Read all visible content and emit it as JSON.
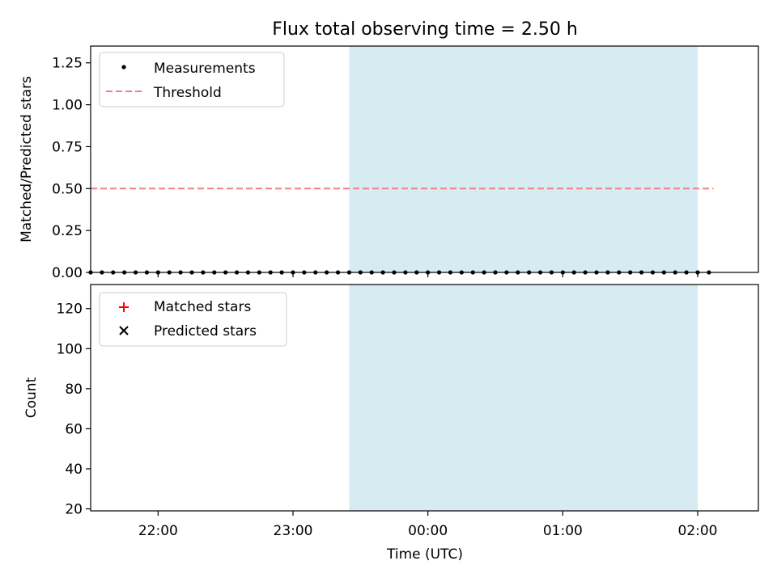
{
  "chart_data": [
    {
      "type": "scatter",
      "title": "Flux total observing time = 2.50 h",
      "ylabel": "Matched/Predicted stars",
      "xlabel": "",
      "xlim": [
        "21:30",
        "02:27"
      ],
      "ylim": [
        0.0,
        1.35
      ],
      "yticks": [
        0.0,
        0.25,
        0.5,
        0.75,
        1.0,
        1.25
      ],
      "ytick_labels": [
        "0.00",
        "0.25",
        "0.50",
        "0.75",
        "1.00",
        "1.25"
      ],
      "shaded_interval": [
        "23:25",
        "02:00"
      ],
      "shade_color": "#add8e6",
      "legend_position": "upper left",
      "series": [
        {
          "name": "Measurements",
          "color": "#000000",
          "marker": "dot",
          "x": [
            "21:30",
            "21:35",
            "21:40",
            "21:45",
            "21:50",
            "21:55",
            "22:00",
            "22:05",
            "22:10",
            "22:15",
            "22:20",
            "22:25",
            "22:30",
            "22:35",
            "22:40",
            "22:45",
            "22:50",
            "22:55",
            "23:00",
            "23:05",
            "23:10",
            "23:15",
            "23:20",
            "23:25",
            "23:30",
            "23:35",
            "23:40",
            "23:45",
            "23:50",
            "23:55",
            "00:00",
            "00:05",
            "00:10",
            "00:15",
            "00:20",
            "00:25",
            "00:30",
            "00:35",
            "00:40",
            "00:45",
            "00:50",
            "00:55",
            "01:00",
            "01:05",
            "01:10",
            "01:15",
            "01:20",
            "01:25",
            "01:30",
            "01:35",
            "01:40",
            "01:45",
            "01:50",
            "01:55",
            "02:00",
            "02:05"
          ],
          "values": [
            0,
            0,
            0,
            0,
            0,
            0,
            0,
            0,
            0,
            0,
            0,
            0,
            0,
            0,
            0,
            0,
            0,
            0,
            0,
            0,
            0,
            0,
            0,
            0,
            0,
            0,
            0,
            0,
            0,
            0,
            0,
            0,
            0,
            0,
            0,
            0,
            0,
            0,
            0,
            0,
            0,
            0,
            0,
            0,
            0,
            0,
            0,
            0,
            0,
            0,
            0,
            0,
            0,
            0,
            0,
            0
          ]
        },
        {
          "name": "Threshold",
          "color": "#f08080",
          "style": "dashed",
          "x": [
            "21:30",
            "02:07"
          ],
          "values": [
            0.5,
            0.5
          ]
        }
      ]
    },
    {
      "type": "scatter",
      "title": "",
      "ylabel": "Count",
      "xlabel": "Time (UTC)",
      "xlim": [
        "21:30",
        "02:27"
      ],
      "ylim": [
        19,
        132
      ],
      "yticks": [
        20,
        40,
        60,
        80,
        100,
        120
      ],
      "ytick_labels": [
        "20",
        "40",
        "60",
        "80",
        "100",
        "120"
      ],
      "xticks": [
        "22:00",
        "23:00",
        "00:00",
        "01:00",
        "02:00"
      ],
      "xtick_labels": [
        "22:00",
        "23:00",
        "00:00",
        "01:00",
        "02:00"
      ],
      "shaded_interval": [
        "23:25",
        "02:00"
      ],
      "shade_color": "#add8e6",
      "legend_position": "upper left",
      "series": [
        {
          "name": "Matched stars",
          "color": "#ff0000",
          "marker": "plus",
          "x": [],
          "values": []
        },
        {
          "name": "Predicted stars",
          "color": "#000000",
          "marker": "x",
          "x": [],
          "values": []
        }
      ]
    }
  ]
}
